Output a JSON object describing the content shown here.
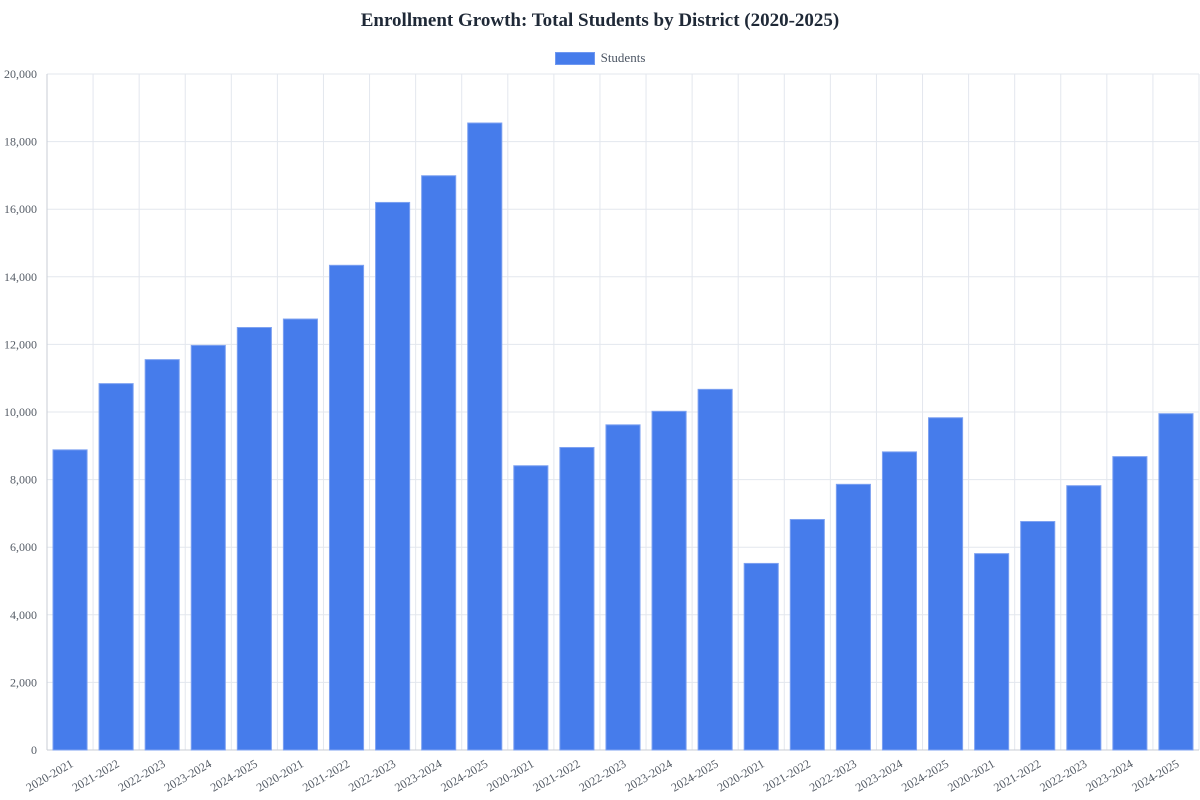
{
  "chart_data": {
    "type": "bar",
    "title": "Enrollment Growth: Total Students by District (2020-2025)",
    "xlabel": "",
    "ylabel": "",
    "ylim": [
      0,
      20000
    ],
    "yticks": [
      "0",
      "2,000",
      "4,000",
      "6,000",
      "8,000",
      "10,000",
      "12,000",
      "14,000",
      "16,000",
      "18,000",
      "20,000"
    ],
    "grid": true,
    "legend_position": "top",
    "bar_color": "#467ceb",
    "categories": [
      "2020-2021",
      "2021-2022",
      "2022-2023",
      "2023-2024",
      "2024-2025",
      "2020-2021",
      "2021-2022",
      "2022-2023",
      "2023-2024",
      "2024-2025",
      "2020-2021",
      "2021-2022",
      "2022-2023",
      "2023-2024",
      "2024-2025",
      "2020-2021",
      "2021-2022",
      "2022-2023",
      "2023-2024",
      "2024-2025",
      "2020-2021",
      "2021-2022",
      "2022-2023",
      "2023-2024",
      "2024-2025"
    ],
    "series": [
      {
        "name": "Students",
        "values": [
          8880,
          10840,
          11550,
          11970,
          12500,
          12750,
          14340,
          16200,
          16990,
          18550,
          8410,
          8950,
          9620,
          10020,
          10670,
          5520,
          6820,
          7860,
          8820,
          9830,
          5810,
          6760,
          7820,
          8680,
          9950
        ]
      }
    ]
  }
}
